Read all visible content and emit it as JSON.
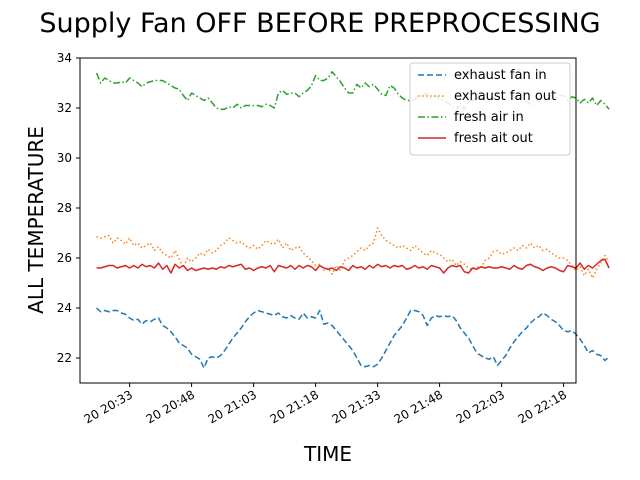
{
  "chart_data": {
    "type": "line",
    "title": "Supply Fan OFF BEFORE PREPROCESSING",
    "xlabel": "TIME",
    "ylabel": "ALL TEMPERATURE",
    "x_start": "20:25",
    "x_step_minutes": 1,
    "x_ticks": [
      "20 20:33",
      "20 20:48",
      "20 21:03",
      "20 21:18",
      "20 21:33",
      "20 21:48",
      "20 22:03",
      "20 22:18"
    ],
    "xlim": [
      "20:21",
      "22:21"
    ],
    "ylim": [
      21,
      34
    ],
    "y_ticks": [
      22,
      24,
      26,
      28,
      30,
      32,
      34
    ],
    "legend_position": "top-right",
    "grid": false,
    "series": [
      {
        "name": "exhaust fan in",
        "color": "#1f77b4",
        "style": "dashed",
        "values": [
          24.0,
          23.85,
          23.9,
          23.85,
          23.9,
          23.9,
          23.8,
          23.75,
          23.6,
          23.5,
          23.55,
          23.35,
          23.5,
          23.45,
          23.55,
          23.6,
          23.3,
          23.2,
          23.05,
          22.85,
          22.6,
          22.5,
          22.4,
          22.15,
          22.05,
          21.95,
          21.6,
          22.0,
          22.05,
          22.0,
          22.1,
          22.3,
          22.55,
          22.8,
          23.0,
          23.2,
          23.45,
          23.65,
          23.8,
          23.9,
          23.85,
          23.8,
          23.75,
          23.7,
          23.8,
          23.65,
          23.6,
          23.7,
          23.6,
          23.55,
          23.8,
          23.6,
          23.65,
          23.6,
          23.9,
          23.35,
          23.4,
          23.3,
          23.1,
          22.9,
          22.7,
          22.5,
          22.3,
          22.0,
          21.7,
          21.65,
          21.7,
          21.65,
          21.75,
          22.0,
          22.3,
          22.6,
          22.9,
          23.1,
          23.3,
          23.6,
          23.9,
          23.9,
          23.85,
          23.7,
          23.3,
          23.6,
          23.7,
          23.65,
          23.7,
          23.65,
          23.7,
          23.5,
          23.2,
          23.0,
          22.8,
          22.5,
          22.2,
          22.1,
          22.0,
          21.95,
          22.05,
          21.7,
          21.9,
          22.1,
          22.4,
          22.65,
          22.85,
          23.05,
          23.2,
          23.4,
          23.55,
          23.65,
          23.8,
          23.7,
          23.55,
          23.45,
          23.3,
          23.1,
          23.05,
          23.1,
          22.95,
          22.75,
          22.5,
          22.2,
          22.3,
          22.15,
          22.1,
          21.9,
          22.05
        ]
      },
      {
        "name": "exhaust fan out",
        "color": "#ff7f0e",
        "style": "dotted",
        "values": [
          26.85,
          26.8,
          26.85,
          26.9,
          26.6,
          26.8,
          26.7,
          26.55,
          26.8,
          26.5,
          26.6,
          26.4,
          26.5,
          26.6,
          26.3,
          26.45,
          26.2,
          26.1,
          26.0,
          26.3,
          25.95,
          25.6,
          26.0,
          25.85,
          26.0,
          26.2,
          26.1,
          26.35,
          26.2,
          26.3,
          26.5,
          26.6,
          26.8,
          26.7,
          26.6,
          26.65,
          26.5,
          26.4,
          26.5,
          26.35,
          26.5,
          26.7,
          26.6,
          26.55,
          26.75,
          26.4,
          26.6,
          26.3,
          26.4,
          26.45,
          26.2,
          26.05,
          25.9,
          25.7,
          25.75,
          25.5,
          25.6,
          25.35,
          25.7,
          25.5,
          25.9,
          26.0,
          26.1,
          26.25,
          26.4,
          26.3,
          26.5,
          26.6,
          27.2,
          26.9,
          26.7,
          26.6,
          26.5,
          26.4,
          26.5,
          26.4,
          26.3,
          26.5,
          26.35,
          26.2,
          26.1,
          26.3,
          26.2,
          26.15,
          26.0,
          25.85,
          25.95,
          25.7,
          25.85,
          25.75,
          25.6,
          25.55,
          25.65,
          25.6,
          25.9,
          26.0,
          26.25,
          26.3,
          26.15,
          26.2,
          26.3,
          26.4,
          26.3,
          26.5,
          26.4,
          26.6,
          26.4,
          26.5,
          26.3,
          26.35,
          26.2,
          26.1,
          26.0,
          26.0,
          25.9,
          25.7,
          25.5,
          25.65,
          25.3,
          25.55,
          25.2,
          25.55,
          25.8,
          26.1,
          25.85
        ]
      },
      {
        "name": "fresh air in",
        "color": "#2ca02c",
        "style": "dashdot",
        "values": [
          33.4,
          33.0,
          33.2,
          33.1,
          33.0,
          33.0,
          33.05,
          33.0,
          33.2,
          33.1,
          33.0,
          32.85,
          33.0,
          33.05,
          33.1,
          33.1,
          33.1,
          33.0,
          32.9,
          32.8,
          32.75,
          32.5,
          32.3,
          32.6,
          32.5,
          32.4,
          32.3,
          32.4,
          32.2,
          32.0,
          31.95,
          31.95,
          32.05,
          32.0,
          32.15,
          32.0,
          32.1,
          32.1,
          32.1,
          32.1,
          32.05,
          32.15,
          32.1,
          32.0,
          32.6,
          32.7,
          32.55,
          32.6,
          32.6,
          32.45,
          32.6,
          32.7,
          32.9,
          33.3,
          33.1,
          33.1,
          33.2,
          33.45,
          33.25,
          33.05,
          32.8,
          32.6,
          32.6,
          32.95,
          32.8,
          33.0,
          32.85,
          32.95,
          32.75,
          32.55,
          32.5,
          32.9,
          32.8,
          32.55,
          32.4,
          32.3,
          32.3,
          32.35,
          32.5,
          32.5,
          32.6,
          32.4,
          32.5,
          32.35,
          32.3,
          32.2,
          32.1,
          31.9,
          32.2,
          31.95,
          32.3,
          32.3,
          32.35,
          32.5,
          32.2,
          32.3,
          32.4,
          32.3,
          32.4,
          32.35,
          32.4,
          32.5,
          32.4,
          32.3,
          32.25,
          32.15,
          32.3,
          32.25,
          32.4,
          32.5,
          32.5,
          32.4,
          32.5,
          32.5,
          32.3,
          32.45,
          32.4,
          32.2,
          32.35,
          32.2,
          32.4,
          32.1,
          32.3,
          32.15,
          31.95
        ]
      },
      {
        "name": "fresh ait out",
        "color": "#d62728",
        "style": "solid",
        "values": [
          25.6,
          25.6,
          25.65,
          25.7,
          25.7,
          25.6,
          25.65,
          25.7,
          25.6,
          25.7,
          25.6,
          25.75,
          25.65,
          25.7,
          25.6,
          25.8,
          25.55,
          25.7,
          25.4,
          25.75,
          25.6,
          25.7,
          25.5,
          25.6,
          25.5,
          25.55,
          25.6,
          25.55,
          25.6,
          25.55,
          25.65,
          25.6,
          25.7,
          25.65,
          25.7,
          25.75,
          25.55,
          25.6,
          25.5,
          25.6,
          25.65,
          25.6,
          25.7,
          25.45,
          25.7,
          25.65,
          25.6,
          25.7,
          25.55,
          25.7,
          25.6,
          25.7,
          25.65,
          25.5,
          25.7,
          25.6,
          25.55,
          25.6,
          25.5,
          25.65,
          25.6,
          25.5,
          25.7,
          25.6,
          25.65,
          25.55,
          25.7,
          25.6,
          25.75,
          25.65,
          25.7,
          25.6,
          25.7,
          25.65,
          25.7,
          25.55,
          25.6,
          25.7,
          25.6,
          25.65,
          25.55,
          25.7,
          25.65,
          25.6,
          25.4,
          25.6,
          25.7,
          25.65,
          25.7,
          25.45,
          25.4,
          25.6,
          25.55,
          25.65,
          25.6,
          25.65,
          25.6,
          25.6,
          25.65,
          25.6,
          25.55,
          25.7,
          25.6,
          25.55,
          25.7,
          25.75,
          25.65,
          25.6,
          25.5,
          25.6,
          25.65,
          25.6,
          25.5,
          25.45,
          25.7,
          25.65,
          25.6,
          25.8,
          25.55,
          25.7,
          25.6,
          25.75,
          25.9,
          25.95,
          25.6
        ]
      }
    ]
  }
}
